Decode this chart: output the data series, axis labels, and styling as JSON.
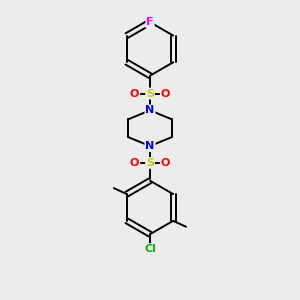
{
  "background_color": "#ececec",
  "figsize": [
    3.0,
    3.0
  ],
  "dpi": 100,
  "bond_color": "#000000",
  "bond_width": 1.4,
  "atom_colors": {
    "F": "#ff00ff",
    "N": "#0000ff",
    "S": "#cccc00",
    "O": "#ff0000",
    "Cl": "#00bb00",
    "C": "#000000"
  },
  "font_sizes": {
    "F": 8,
    "N": 8,
    "S": 8,
    "O": 8,
    "Cl": 8,
    "C": 7
  }
}
